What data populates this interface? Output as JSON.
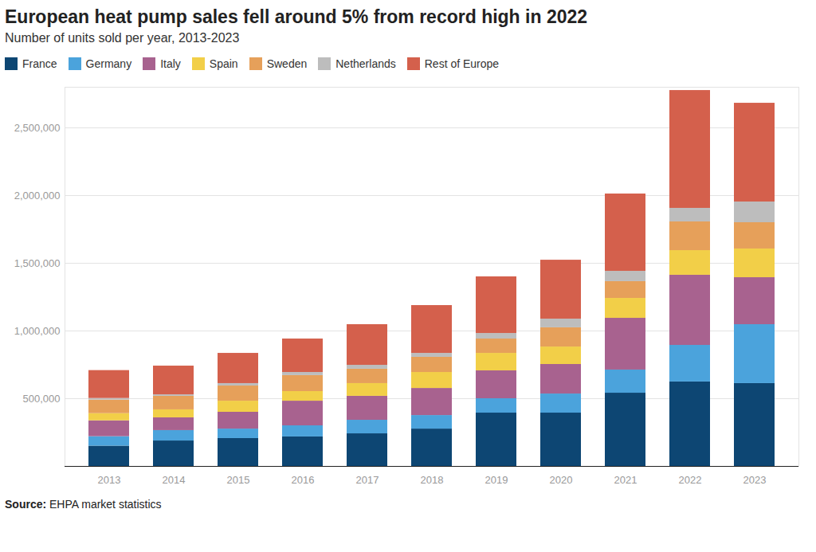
{
  "chart_data": {
    "type": "bar",
    "stacked": true,
    "title": "European heat pump sales fell around 5% from record high in 2022",
    "subtitle": "Number of units sold per year, 2013-2023",
    "caption": "Source: EHPA market statistics",
    "categories": [
      "2013",
      "2014",
      "2015",
      "2016",
      "2017",
      "2018",
      "2019",
      "2020",
      "2021",
      "2022",
      "2023"
    ],
    "series": [
      {
        "name": "France",
        "color": "#0d4673",
        "values": [
          150000,
          188000,
          206000,
          218000,
          241000,
          276000,
          394000,
          394000,
          541000,
          624000,
          612000
        ]
      },
      {
        "name": "Germany",
        "color": "#4ba3dc",
        "values": [
          70000,
          77000,
          70000,
          82000,
          100000,
          100000,
          106000,
          141000,
          171000,
          270000,
          435000
        ]
      },
      {
        "name": "Italy",
        "color": "#a8628f",
        "values": [
          117000,
          94000,
          124000,
          182000,
          177000,
          200000,
          206000,
          218000,
          382000,
          518000,
          347000
        ]
      },
      {
        "name": "Spain",
        "color": "#f2cf48",
        "values": [
          53000,
          59000,
          82000,
          71000,
          94000,
          118000,
          129000,
          129000,
          147000,
          182000,
          212000
        ]
      },
      {
        "name": "Sweden",
        "color": "#e6a05a",
        "values": [
          100000,
          100000,
          112000,
          118000,
          106000,
          112000,
          106000,
          142000,
          124000,
          212000,
          194000
        ]
      },
      {
        "name": "Netherlands",
        "color": "#bdbdbd",
        "values": [
          12000,
          11000,
          18000,
          23000,
          29000,
          29000,
          41000,
          64000,
          76000,
          100000,
          153000
        ]
      },
      {
        "name": "Rest of Europe",
        "color": "#d4604c",
        "values": [
          206000,
          212000,
          223000,
          247000,
          300000,
          353000,
          418000,
          435000,
          571000,
          870000,
          729000
        ]
      }
    ],
    "ylim": [
      0,
      2800000
    ],
    "yticks": [
      {
        "value": 500000,
        "label": "500,000"
      },
      {
        "value": 1000000,
        "label": "1,000,000"
      },
      {
        "value": 1500000,
        "label": "1,500,000"
      },
      {
        "value": 2000000,
        "label": "2,000,000"
      },
      {
        "value": 2500000,
        "label": "2,500,000"
      }
    ],
    "grid": true,
    "legend": "top-left"
  }
}
